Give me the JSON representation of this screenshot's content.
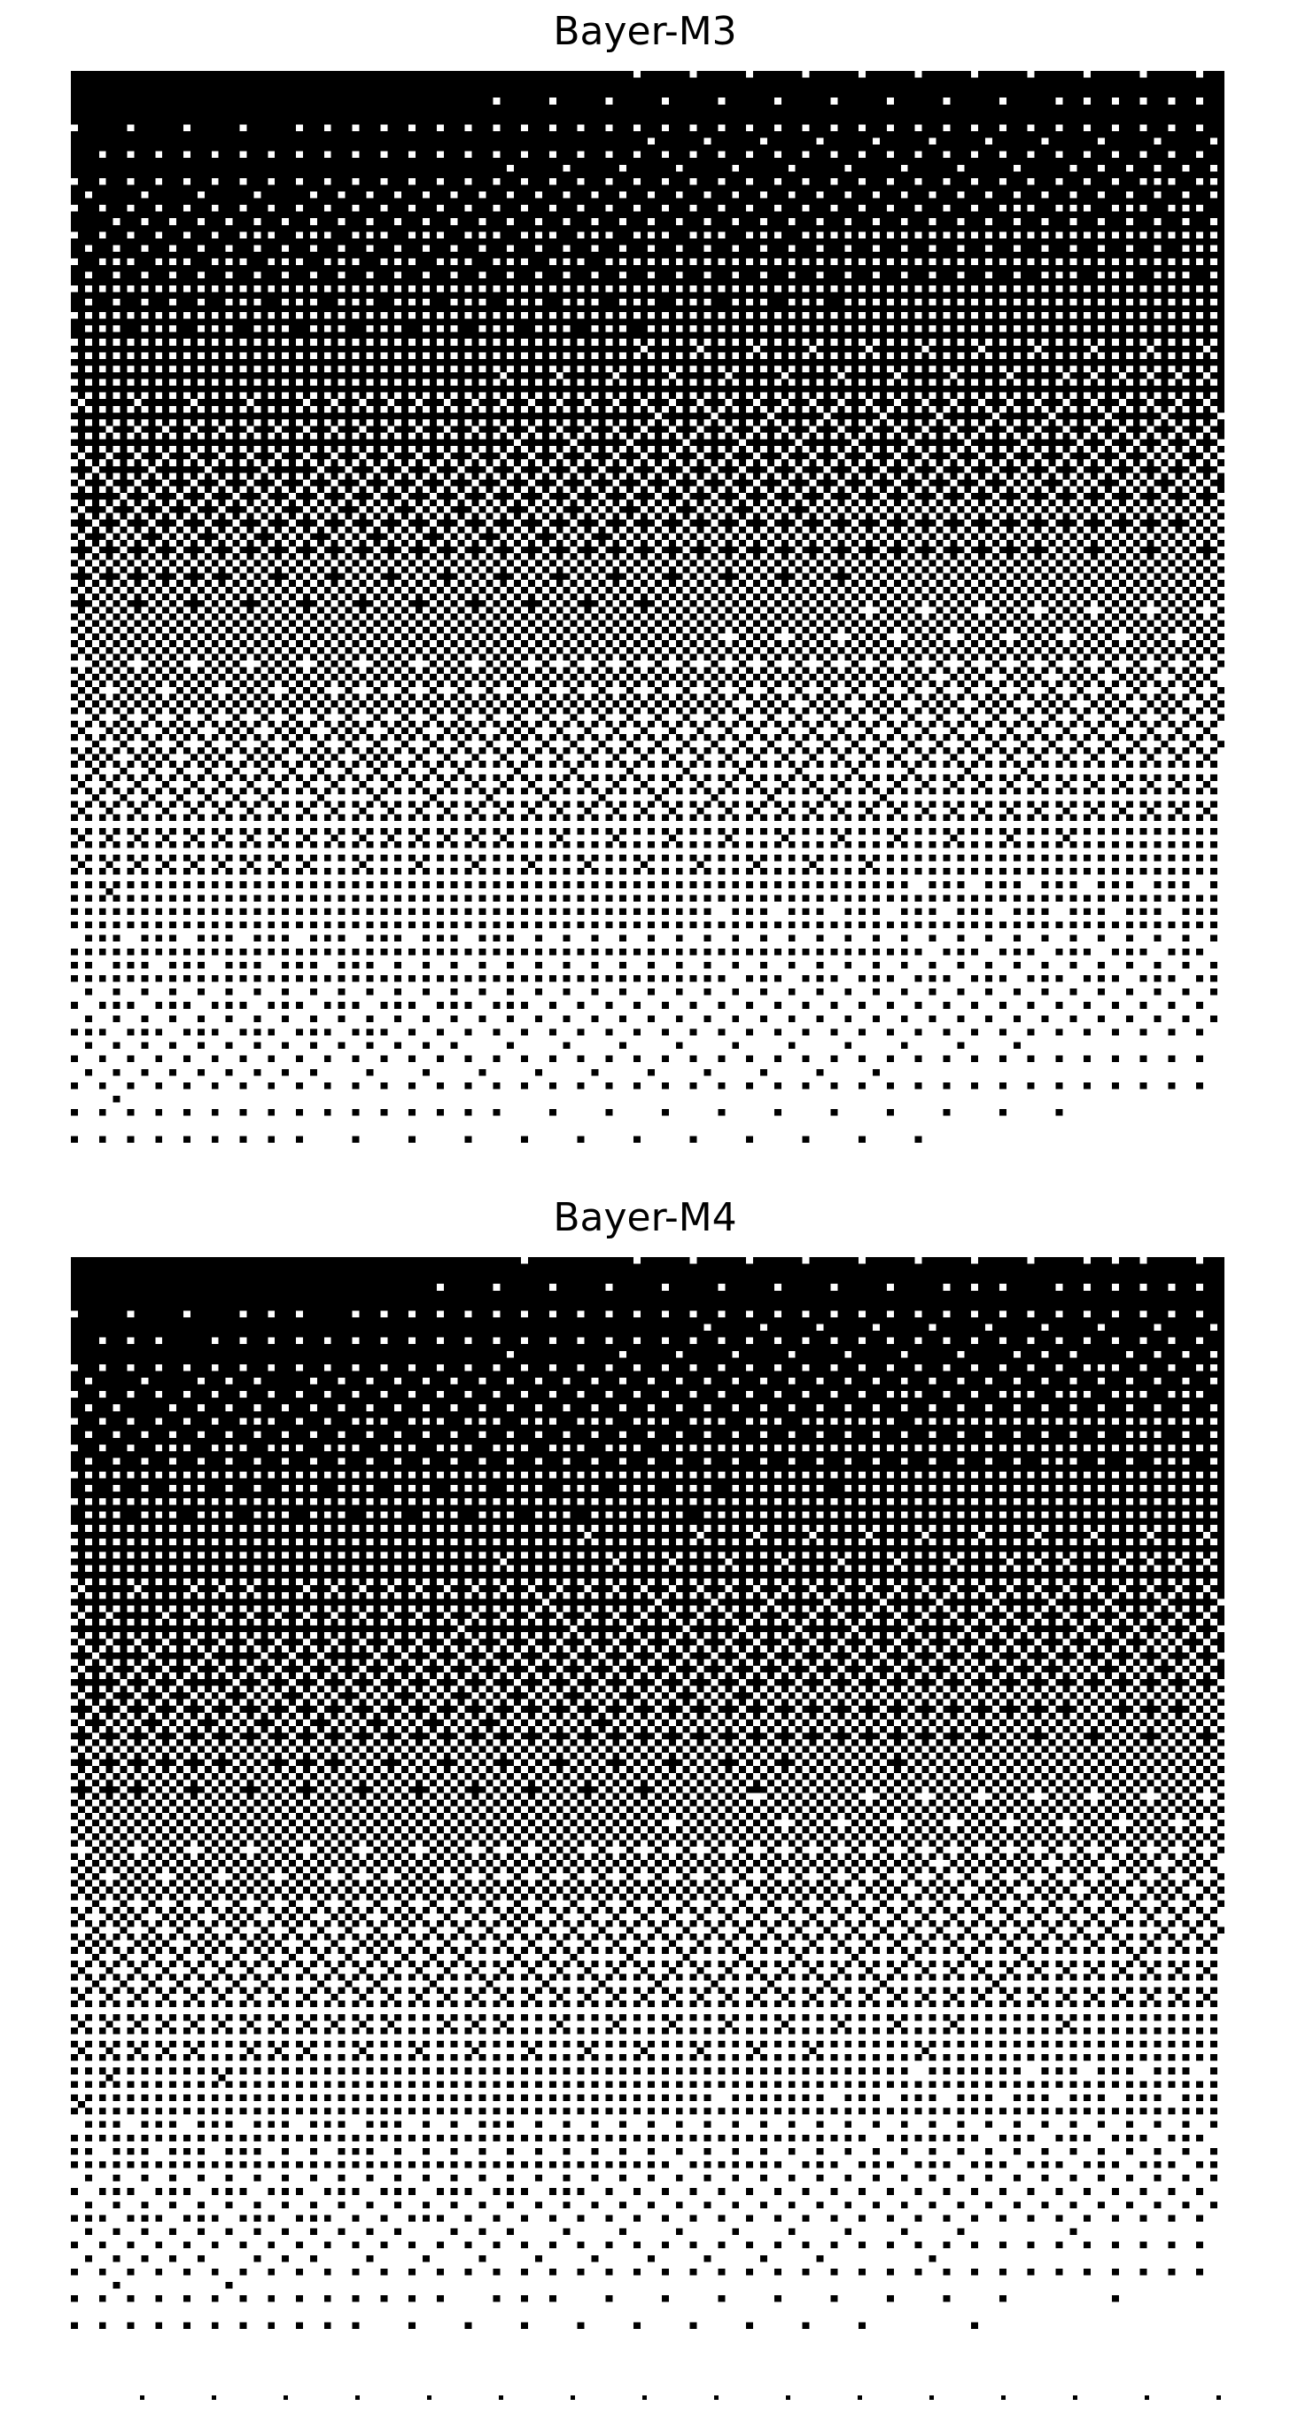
{
  "panels": [
    {
      "title": "Bayer-M3",
      "dither_matrix": "bayer-8x8",
      "gradient": "black-to-white-vertical"
    },
    {
      "title": "Bayer-M4",
      "dither_matrix": "bayer-16x16",
      "gradient": "black-to-white-vertical"
    }
  ],
  "colors": {
    "background": "#ffffff",
    "ink": "#000000"
  }
}
